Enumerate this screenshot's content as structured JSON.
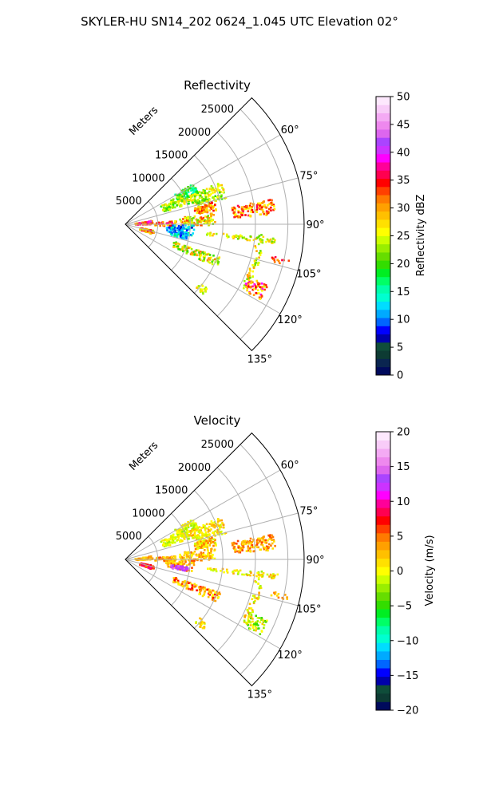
{
  "figure": {
    "suptitle": "SKYLER-HU  SN14_202  0624_1.045 UTC Elevation 02°"
  },
  "chart_data": [
    {
      "type": "heatmap",
      "title": "Reflectivity",
      "radial_label": "Meters",
      "radial_ticks": [
        "5000",
        "10000",
        "15000",
        "20000",
        "25000"
      ],
      "range_limits": [
        0,
        27500
      ],
      "azimuth_ticks": [
        "60°",
        "75°",
        "90°",
        "105°",
        "120°",
        "135°"
      ],
      "azimuth_range_deg": [
        45,
        135
      ],
      "grid": true,
      "colorbar": {
        "label": "Reflectivity dBZ",
        "ticks": [
          "0",
          "5",
          "10",
          "15",
          "20",
          "25",
          "30",
          "35",
          "40",
          "45",
          "50"
        ],
        "range": [
          0,
          50
        ],
        "colors": [
          "#000a5c",
          "#0a2550",
          "#0d3b33",
          "#0f4d3a",
          "#0000aa",
          "#0000ff",
          "#0066ff",
          "#00aaff",
          "#00ddff",
          "#00ffd0",
          "#00ffaa",
          "#00ff66",
          "#00ee22",
          "#33dd00",
          "#66dd00",
          "#99ee00",
          "#ccff00",
          "#ffff00",
          "#ffe000",
          "#ffc000",
          "#ffa000",
          "#ff7a00",
          "#ff4000",
          "#ff0000",
          "#ff0050",
          "#ff0099",
          "#ff00ff",
          "#cc33ff",
          "#aa44ff",
          "#dd66ee",
          "#ee88ee",
          "#f4aaf4",
          "#f8ccf8",
          "#fde8fd"
        ]
      }
    },
    {
      "type": "heatmap",
      "title": "Velocity",
      "radial_label": "Meters",
      "radial_ticks": [
        "5000",
        "10000",
        "15000",
        "20000",
        "25000"
      ],
      "range_limits": [
        0,
        27500
      ],
      "azimuth_ticks": [
        "60°",
        "75°",
        "90°",
        "105°",
        "120°",
        "135°"
      ],
      "azimuth_range_deg": [
        45,
        135
      ],
      "grid": true,
      "colorbar": {
        "label": "Velocity (m/s)",
        "ticks": [
          "−20",
          "−15",
          "−10",
          "−5",
          "0",
          "5",
          "10",
          "15",
          "20"
        ],
        "range": [
          -20,
          20
        ],
        "colors": [
          "#000a5c",
          "#0d3b33",
          "#0f4d3a",
          "#0000aa",
          "#0000ff",
          "#0066ff",
          "#00aaff",
          "#00ddff",
          "#00ffd0",
          "#00ffaa",
          "#00ff66",
          "#00ee22",
          "#33dd00",
          "#66dd00",
          "#99ee00",
          "#ccff00",
          "#ffff00",
          "#ffe000",
          "#ffc000",
          "#ffa000",
          "#ff7a00",
          "#ff4000",
          "#ff0000",
          "#ff0050",
          "#ff0099",
          "#ff00ff",
          "#cc33ff",
          "#aa44ff",
          "#dd66ee",
          "#ee88ee",
          "#f4aaf4",
          "#f8ccf8",
          "#fde8fd"
        ]
      }
    }
  ]
}
